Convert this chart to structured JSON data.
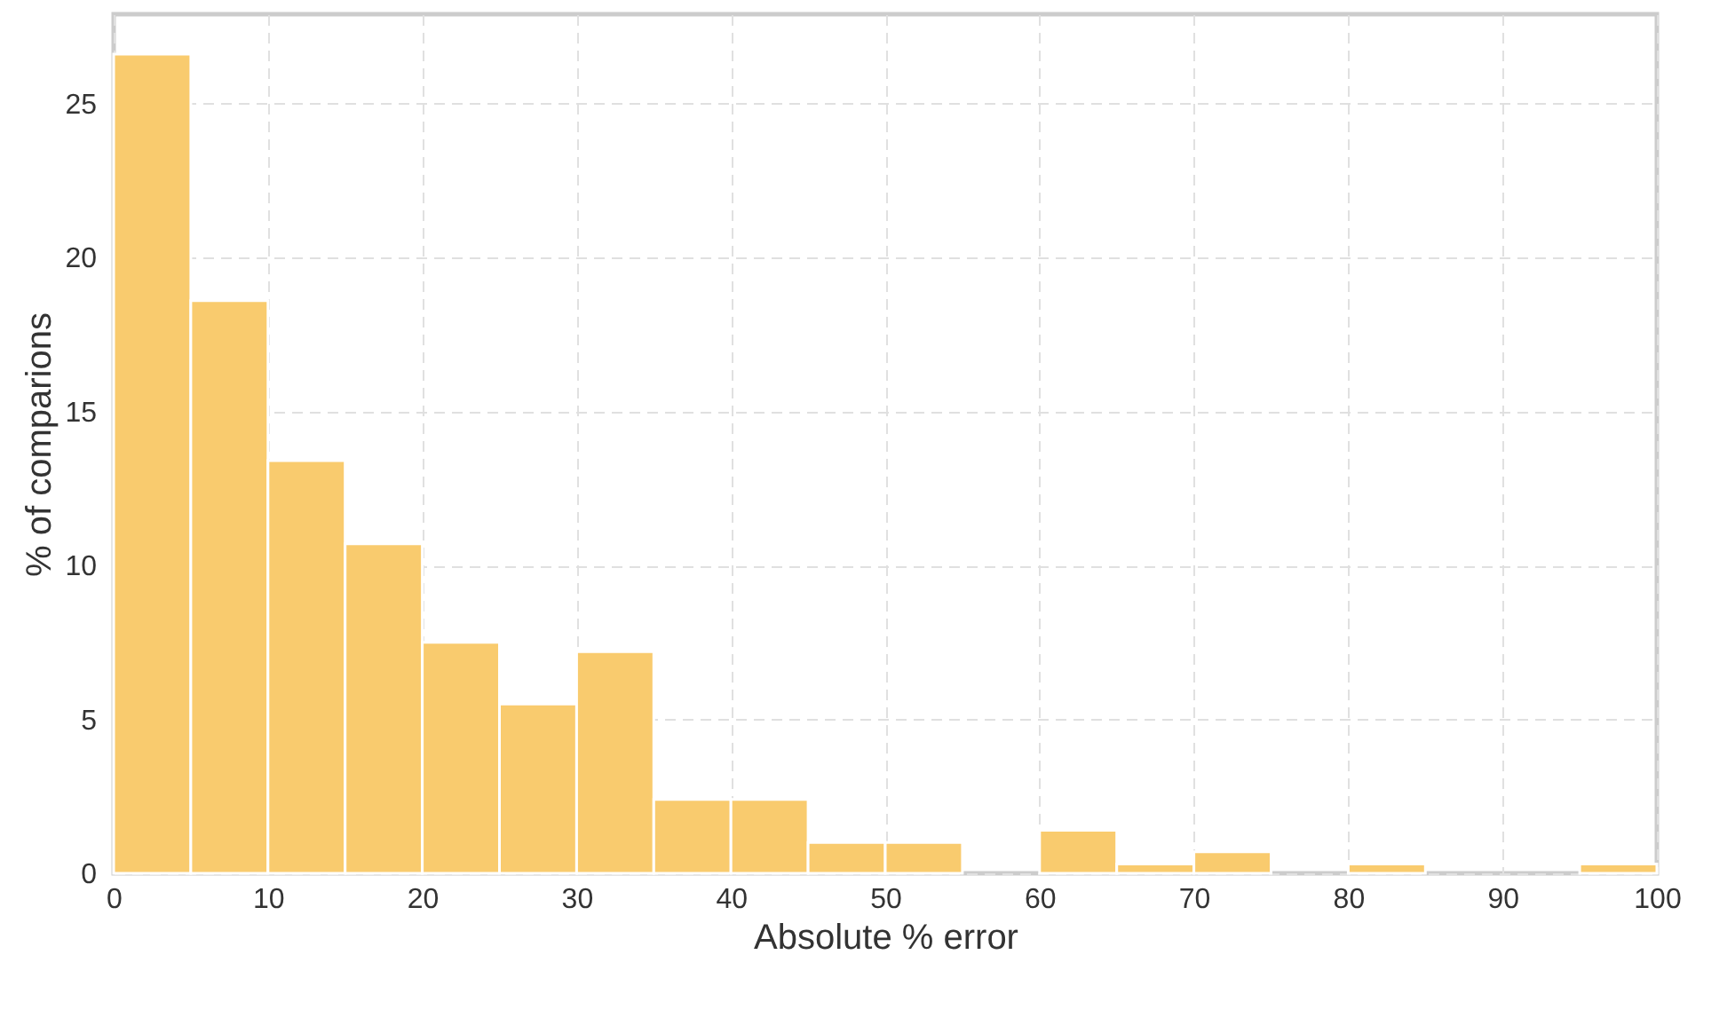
{
  "chart_data": {
    "type": "histogram",
    "xlabel": "Absolute % error",
    "ylabel": "% of comparions",
    "bins": [
      0,
      5,
      10,
      15,
      20,
      25,
      30,
      35,
      40,
      45,
      50,
      55,
      60,
      65,
      70,
      75,
      80,
      85,
      90,
      95,
      100
    ],
    "values": [
      26.6,
      18.6,
      13.4,
      10.7,
      7.5,
      5.5,
      7.2,
      2.4,
      2.4,
      1.0,
      1.0,
      0,
      1.4,
      0.3,
      0.7,
      0,
      0.3,
      0,
      0,
      0.3
    ],
    "color": "#f9cb6e",
    "xlim": [
      0,
      100
    ],
    "xticks": [
      0,
      10,
      20,
      30,
      40,
      50,
      60,
      70,
      80,
      90,
      100
    ],
    "ylim": [
      0,
      27.9
    ],
    "yticks": [
      0,
      5,
      10,
      15,
      20,
      25
    ],
    "grid": true
  }
}
